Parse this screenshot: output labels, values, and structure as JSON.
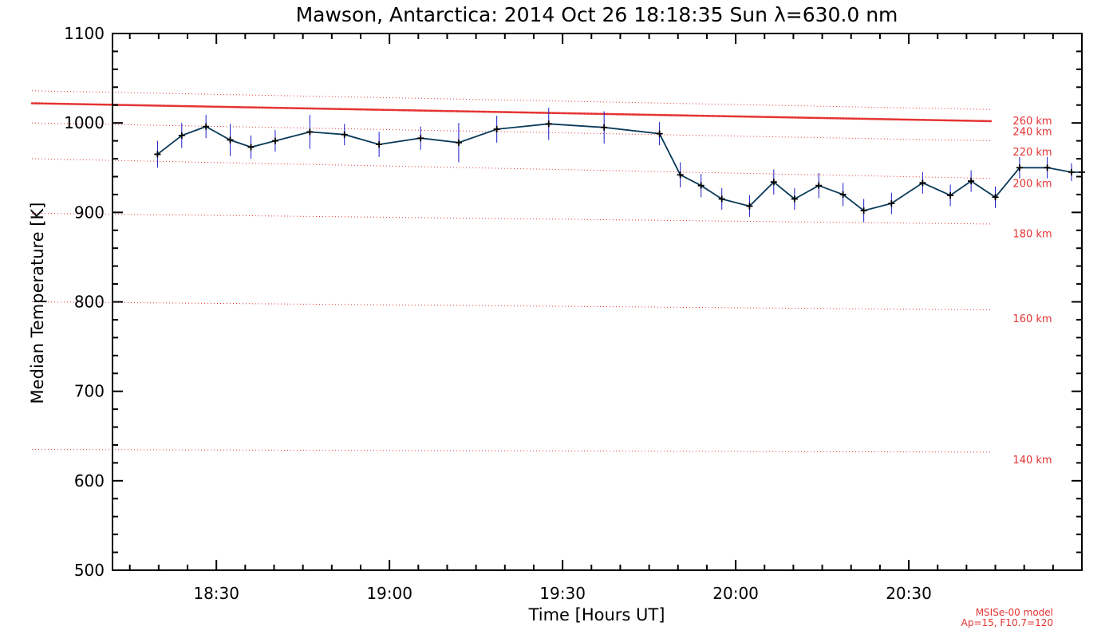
{
  "chart_data": {
    "type": "line",
    "title": "Mawson, Antarctica: 2014 Oct 26 18:18:35 Sun λ=630.0 nm",
    "xlabel": "Time [Hours UT]",
    "ylabel": "Median Temperature [K]",
    "xlim": [
      18.2,
      21.0
    ],
    "ylim": [
      500,
      1100
    ],
    "x_ticks": [
      18.5,
      19.0,
      19.5,
      20.0,
      20.5
    ],
    "x_tick_labels": [
      "18:30",
      "19:00",
      "19:30",
      "20:00",
      "20:30"
    ],
    "y_ticks": [
      500,
      600,
      700,
      800,
      900,
      1000,
      1100
    ],
    "y_tick_labels": [
      "500",
      "600",
      "700",
      "800",
      "900",
      "1000",
      "1100"
    ],
    "series": [
      {
        "name": "Median Temperature",
        "color": "#0a3a5a",
        "marker_color": "#000000",
        "error_color": "#1a1acc",
        "x": [
          18.33,
          18.4,
          18.47,
          18.54,
          18.6,
          18.67,
          18.77,
          18.87,
          18.97,
          19.09,
          19.2,
          19.31,
          19.46,
          19.62,
          19.78,
          19.84,
          19.9,
          19.96,
          20.04,
          20.11,
          20.17,
          20.24,
          20.31,
          20.37,
          20.45,
          20.54,
          20.62,
          20.68,
          20.75,
          20.82,
          20.9,
          20.97,
          21.0
        ],
        "y": [
          965,
          986,
          996,
          981,
          973,
          980,
          990,
          987,
          976,
          983,
          978,
          993,
          999,
          995,
          988,
          942,
          930,
          915,
          907,
          934,
          915,
          930,
          920,
          902,
          910,
          933,
          919,
          935,
          917,
          950,
          950,
          945,
          945
        ],
        "err": [
          15,
          14,
          13,
          18,
          13,
          12,
          19,
          12,
          14,
          13,
          22,
          15,
          18,
          18,
          13,
          14,
          13,
          12,
          12,
          14,
          12,
          14,
          13,
          13,
          12,
          12,
          12,
          12,
          12,
          12,
          12,
          10,
          10
        ]
      }
    ],
    "model_levels": [
      {
        "label": "260 km",
        "start": 1022,
        "end": 1002
      },
      {
        "label": "240 km",
        "start": 1036,
        "end": 1015
      },
      {
        "label": "220 km",
        "start": 1000,
        "end": 980
      },
      {
        "label": "200 km",
        "start": 960,
        "end": 938
      },
      {
        "label": "180 km",
        "start": 899,
        "end": 887
      },
      {
        "label": "160 km",
        "start": 800,
        "end": 791
      },
      {
        "label": "140 km",
        "start": 635,
        "end": 632
      }
    ],
    "model_label_positions": [
      1002,
      990,
      967,
      932,
      876,
      781,
      623
    ],
    "model_note_1": "MSISe-00 model",
    "model_note_2": "Ap=15, F10.7=120",
    "colors": {
      "model": "#e53333",
      "axis": "#000000"
    }
  }
}
